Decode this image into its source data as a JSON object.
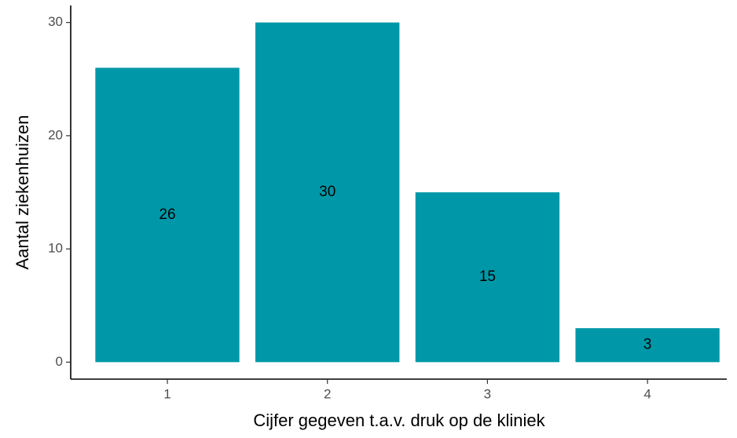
{
  "chart_data": {
    "type": "bar",
    "x_label": "Cijfer gegeven t.a.v. druk op de kliniek",
    "y_label": "Aantal ziekenhuizen",
    "categories": [
      "1",
      "2",
      "3",
      "4"
    ],
    "values": [
      26,
      30,
      15,
      3
    ],
    "color": "#0098a8",
    "ylim": [
      -1.5,
      31.5
    ],
    "yticks": [
      0,
      10,
      20,
      30
    ],
    "grid": false
  }
}
